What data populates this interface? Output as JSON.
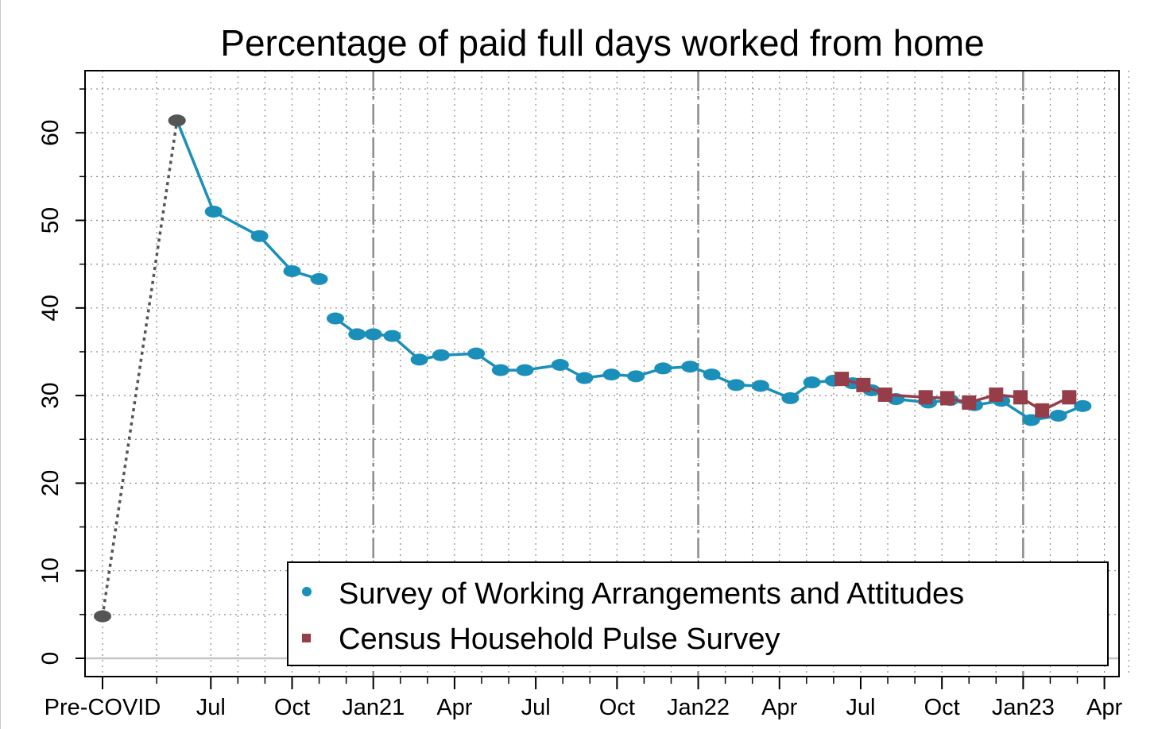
{
  "chart_data": {
    "type": "line",
    "title": "Percentage of paid full days worked from home",
    "xlabel": "",
    "ylabel": "",
    "ylim": [
      -2,
      67
    ],
    "y_ticks": [
      0,
      10,
      20,
      30,
      40,
      50,
      60
    ],
    "y_tick_labels": [
      "0",
      "10",
      "20",
      "30",
      "40",
      "50",
      "60"
    ],
    "x_ticks": [
      0,
      2,
      3,
      6,
      9,
      12,
      15,
      18,
      21,
      24,
      27,
      30,
      33,
      36,
      39
    ],
    "x_tick_labels": [
      "Pre-COVID",
      "",
      "Jul",
      "Oct",
      "Jan21",
      "Apr",
      "Jul",
      "Oct",
      "Jan22",
      "Apr",
      "Jul",
      "Oct",
      "Jan23",
      "Apr"
    ],
    "x_tick_label_positions": [
      0,
      4,
      7,
      10,
      13,
      16,
      19,
      22,
      25,
      28,
      31,
      34,
      37
    ],
    "x_label_ticks": [
      {
        "x": 0,
        "label": "Pre-COVID"
      },
      {
        "x": 4,
        "label": "Jul"
      },
      {
        "x": 7,
        "label": "Oct"
      },
      {
        "x": 10,
        "label": "Jan21"
      },
      {
        "x": 13,
        "label": "Apr"
      },
      {
        "x": 16,
        "label": "Jul"
      },
      {
        "x": 19,
        "label": "Oct"
      },
      {
        "x": 22,
        "label": "Jan22"
      },
      {
        "x": 25,
        "label": "Apr"
      },
      {
        "x": 28,
        "label": "Jul"
      },
      {
        "x": 31,
        "label": "Oct"
      },
      {
        "x": 34,
        "label": "Jan23"
      },
      {
        "x": 37,
        "label": "Apr"
      }
    ],
    "x_minor_ticks": [
      0,
      2,
      4,
      5,
      6,
      7,
      8,
      9,
      10,
      11,
      12,
      13,
      14,
      15,
      16,
      17,
      18,
      19,
      20,
      21,
      22,
      23,
      24,
      25,
      26,
      27,
      28,
      29,
      30,
      31,
      32,
      33,
      34,
      35,
      36,
      37
    ],
    "xlim": [
      -0.7,
      37.9
    ],
    "year_boundaries": [
      10,
      22,
      34
    ],
    "grid": true,
    "legend_position": "bottom-right",
    "series": [
      {
        "name": "Survey of Working Arrangements and Attitudes",
        "color": "#1a8fba",
        "marker": "circle",
        "segments": [
          [
            [
              2.75,
              61.4
            ],
            [
              4.1,
              51.0
            ],
            [
              5.8,
              48.2
            ],
            [
              7.0,
              44.2
            ],
            [
              8.0,
              43.3
            ]
          ],
          [
            [
              8.6,
              38.8
            ],
            [
              9.4,
              37.0
            ],
            [
              10.0,
              37.0
            ],
            [
              10.7,
              36.8
            ],
            [
              11.7,
              34.1
            ],
            [
              12.5,
              34.6
            ],
            [
              13.8,
              34.8
            ],
            [
              14.7,
              32.9
            ],
            [
              15.6,
              32.9
            ],
            [
              16.9,
              33.5
            ],
            [
              17.8,
              32.0
            ],
            [
              18.8,
              32.4
            ],
            [
              19.7,
              32.2
            ],
            [
              20.7,
              33.1
            ],
            [
              21.7,
              33.3
            ],
            [
              22.5,
              32.4
            ],
            [
              23.4,
              31.2
            ],
            [
              24.3,
              31.1
            ],
            [
              25.4,
              29.7
            ],
            [
              26.2,
              31.5
            ],
            [
              27.0,
              31.7
            ],
            [
              27.7,
              31.4
            ],
            [
              28.4,
              30.6
            ],
            [
              29.3,
              29.6
            ],
            [
              30.5,
              29.2
            ],
            [
              31.3,
              29.5
            ],
            [
              32.2,
              28.9
            ],
            [
              33.2,
              29.4
            ],
            [
              34.3,
              27.2
            ],
            [
              35.3,
              27.7
            ],
            [
              36.2,
              28.8
            ]
          ]
        ]
      },
      {
        "name": "Census Household Pulse Survey",
        "color": "#953e4a",
        "marker": "square",
        "segments": [
          [
            [
              27.3,
              31.9
            ],
            [
              28.1,
              31.2
            ],
            [
              28.9,
              30.1
            ],
            [
              30.4,
              29.8
            ],
            [
              31.2,
              29.7
            ],
            [
              32.0,
              29.2
            ],
            [
              33.0,
              30.1
            ],
            [
              33.9,
              29.8
            ],
            [
              34.7,
              28.3
            ],
            [
              35.7,
              29.8
            ]
          ]
        ]
      },
      {
        "name": "",
        "color": "#555555",
        "marker": "circle",
        "dashed": true,
        "segments": [
          [
            [
              0,
              4.8
            ],
            [
              2.75,
              61.4
            ]
          ]
        ]
      }
    ]
  },
  "legend": {
    "entries": [
      {
        "label": "Survey of Working Arrangements and Attitudes",
        "color": "#1a8fba",
        "marker": "circle"
      },
      {
        "label": "Census Household Pulse Survey",
        "color": "#953e4a",
        "marker": "square"
      }
    ]
  }
}
